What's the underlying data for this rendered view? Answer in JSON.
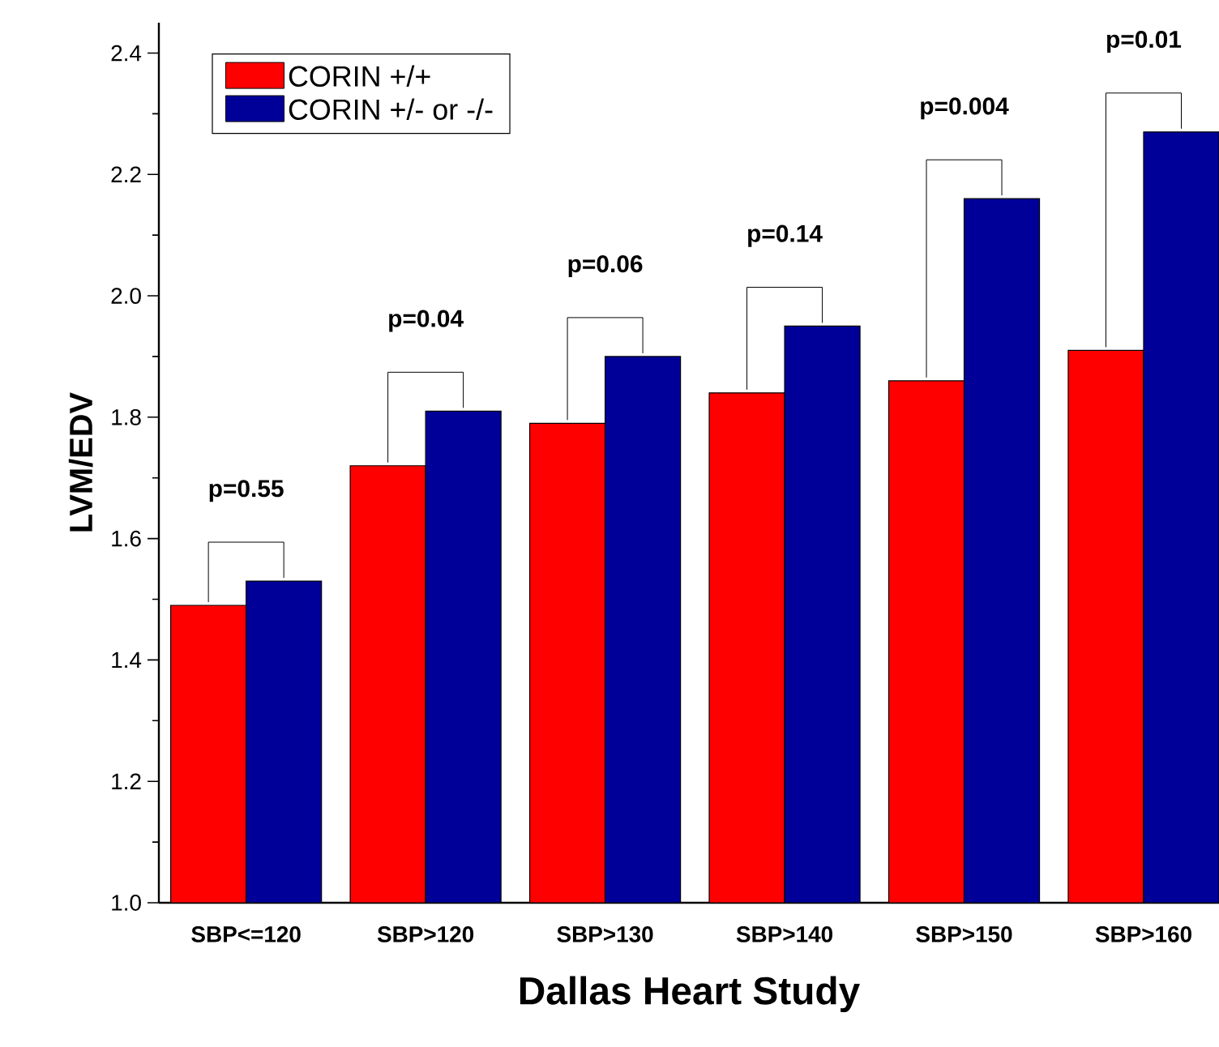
{
  "chart_data": {
    "type": "bar",
    "xlabel": "Dallas Heart Study",
    "ylabel": "LVM/EDV",
    "categories": [
      "SBP<=120",
      "SBP>120",
      "SBP>130",
      "SBP>140",
      "SBP>150",
      "SBP>160"
    ],
    "series": [
      {
        "name": "CORIN +/+",
        "color": "#ff0000",
        "values": [
          1.49,
          1.72,
          1.79,
          1.84,
          1.86,
          1.91
        ]
      },
      {
        "name": "CORIN +/- or -/-",
        "color": "#000099",
        "values": [
          1.53,
          1.81,
          1.9,
          1.95,
          2.16,
          2.27
        ]
      }
    ],
    "ylim": [
      1.0,
      2.45
    ],
    "yticks": [
      {
        "value": 1.0,
        "label": "1.0"
      },
      {
        "value": 1.1,
        "label": null
      },
      {
        "value": 1.2,
        "label": "1.2"
      },
      {
        "value": 1.3,
        "label": null
      },
      {
        "value": 1.4,
        "label": "1.4"
      },
      {
        "value": 1.5,
        "label": null
      },
      {
        "value": 1.6,
        "label": "1.6"
      },
      {
        "value": 1.7,
        "label": null
      },
      {
        "value": 1.8,
        "label": "1.8"
      },
      {
        "value": 1.9,
        "label": null
      },
      {
        "value": 2.0,
        "label": "2.0"
      },
      {
        "value": 2.1,
        "label": null
      },
      {
        "value": 2.2,
        "label": "2.2"
      },
      {
        "value": 2.3,
        "label": null
      },
      {
        "value": 2.4,
        "label": "2.4"
      }
    ],
    "annotations": [
      "p=0.55",
      "p=0.04",
      "p=0.06",
      "p=0.14",
      "p=0.004",
      "p=0.01"
    ],
    "legend": "top left",
    "grid": false
  }
}
